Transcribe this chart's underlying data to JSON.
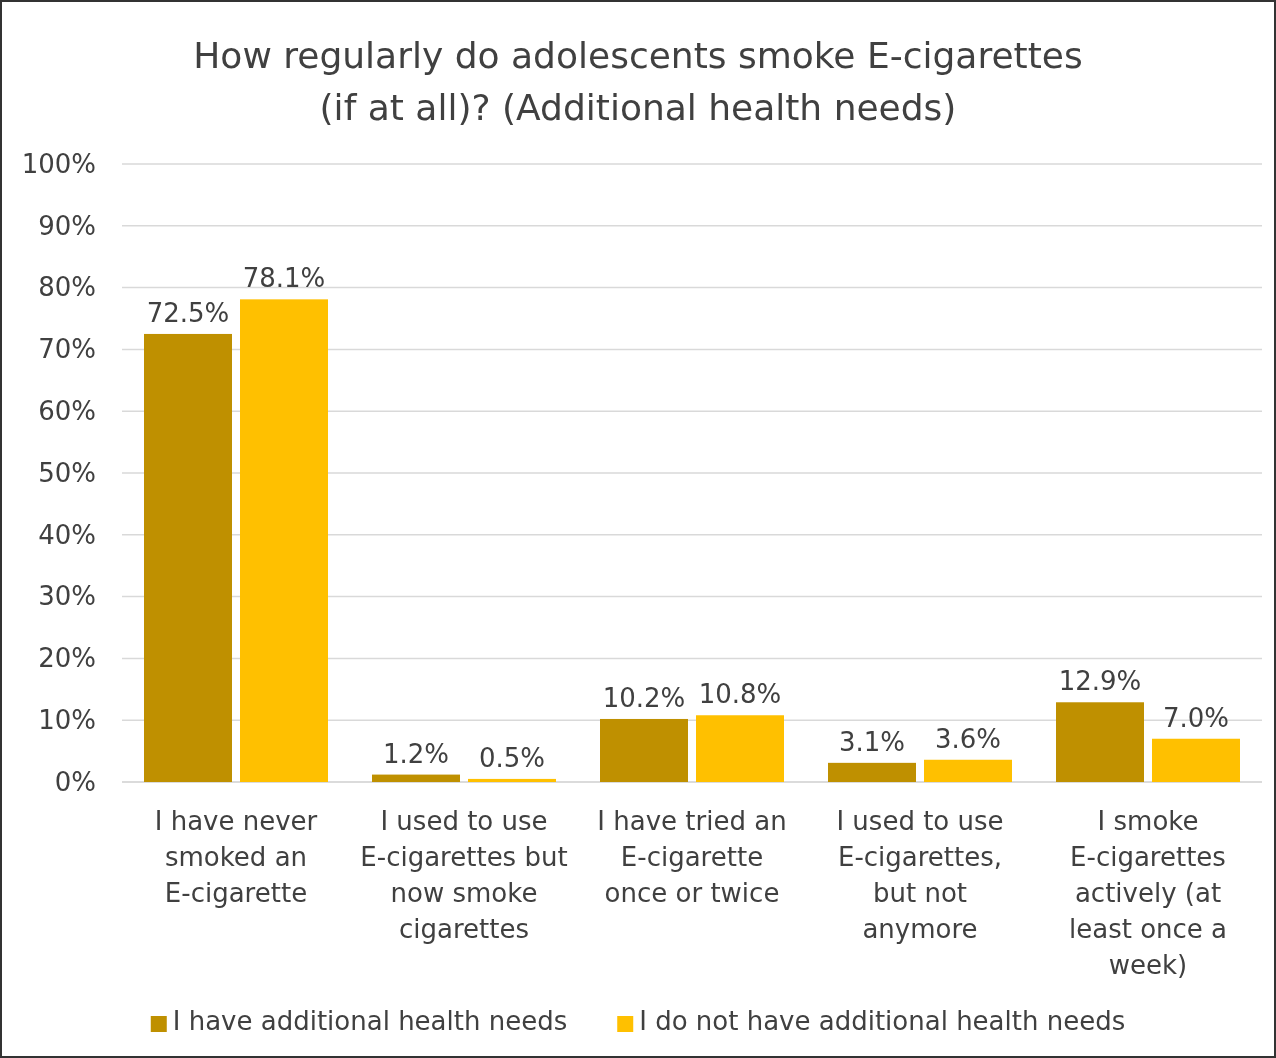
{
  "chart_data": {
    "type": "bar",
    "title": "How regularly do adolescents smoke E-cigarettes (if at all)? (Additional health needs)",
    "categories": [
      "I have never smoked an E-cigarette",
      "I used to use E-cigarettes but now smoke cigarettes",
      "I have tried an E-cigarette once or twice",
      "I used to use E-cigarettes, but not anymore",
      "I smoke E-cigarettes actively (at least once a week)"
    ],
    "series": [
      {
        "name": "I have additional health needs",
        "color": "#bf9000",
        "values": [
          72.5,
          1.2,
          10.2,
          3.1,
          12.9
        ],
        "value_labels": [
          "72.5%",
          "1.2%",
          "10.2%",
          "3.1%",
          "12.9%"
        ]
      },
      {
        "name": "I do not have additional health needs",
        "color": "#ffc000",
        "values": [
          78.1,
          0.5,
          10.8,
          3.6,
          7.0
        ],
        "value_labels": [
          "78.1%",
          "0.5%",
          "10.8%",
          "3.6%",
          "7.0%"
        ]
      }
    ],
    "ylim": [
      0,
      100
    ],
    "yticks": [
      {
        "value": 0,
        "label": "0%"
      },
      {
        "value": 10,
        "label": "10%"
      },
      {
        "value": 20,
        "label": "20%"
      },
      {
        "value": 30,
        "label": "30%"
      },
      {
        "value": 40,
        "label": "40%"
      },
      {
        "value": 50,
        "label": "50%"
      },
      {
        "value": 60,
        "label": "60%"
      },
      {
        "value": 70,
        "label": "70%"
      },
      {
        "value": 80,
        "label": "80%"
      },
      {
        "value": 90,
        "label": "90%"
      },
      {
        "value": 100,
        "label": "100%"
      }
    ],
    "grid": "y",
    "legend": "bottom"
  }
}
